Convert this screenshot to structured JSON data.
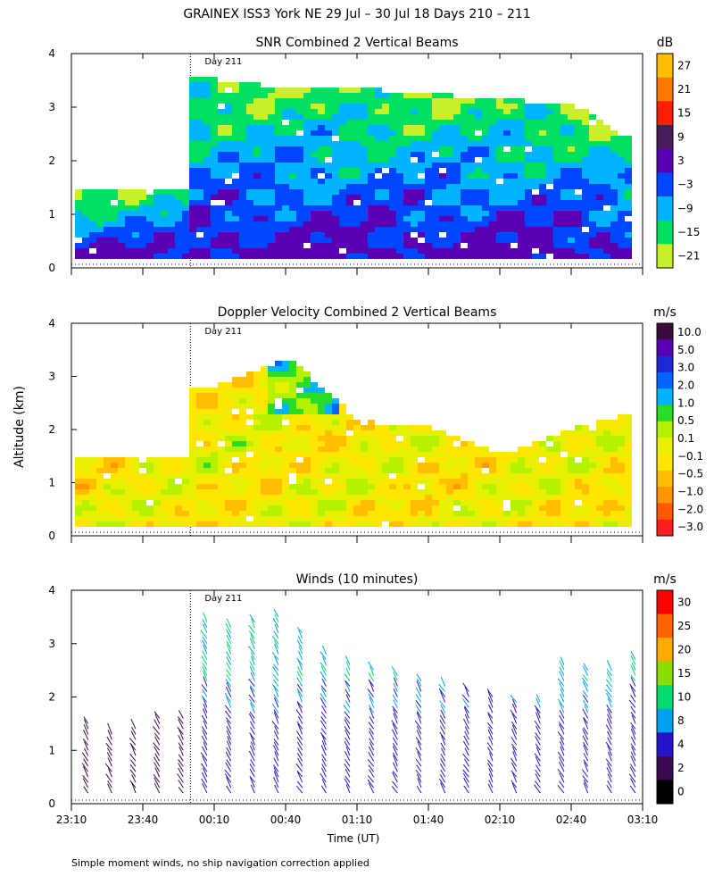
{
  "figure": {
    "title": "GRAINEX ISS3 York NE  29 Jul – 30 Jul 18 Days 210 – 211",
    "xlabel": "Time (UT)",
    "ylabel": "Altitude (km)",
    "footnote": "Simple moment winds, no ship navigation correction applied",
    "day_marker_label": "Day 211"
  },
  "colors": {
    "snr": [
      "#c8f028",
      "#00e060",
      "#00b4ff",
      "#0046ff",
      "#5a00b4",
      "#461e5a",
      "#ff1e00",
      "#ff7800",
      "#ffbe00"
    ],
    "vel": [
      "#ff1e1e",
      "#ff5a00",
      "#ff9600",
      "#ffbe00",
      "#ffe600",
      "#e6f000",
      "#b4f000",
      "#28dc28",
      "#00b4ff",
      "#0064ff",
      "#1e28d2",
      "#5a00b4",
      "#3c0a3c"
    ],
    "wind": [
      "#000000",
      "#3c0a50",
      "#2814c8",
      "#00a0f0",
      "#00dc6e",
      "#8cdc00",
      "#ffaa00",
      "#ff6400",
      "#ff0000"
    ]
  },
  "chart_data": [
    {
      "type": "heatmap",
      "title": "SNR Combined 2 Vertical Beams",
      "units": "dB",
      "colorbar_ticks": [
        "27",
        "21",
        "15",
        "9",
        "3",
        "−3",
        "−9",
        "−15",
        "−21"
      ],
      "x_ticks": [
        "23:10",
        "23:40",
        "00:10",
        "00:40",
        "01:10",
        "01:40",
        "02:10",
        "02:40",
        "03:10"
      ],
      "y_ticks": [
        "0",
        "1",
        "2",
        "3",
        "4"
      ],
      "ylim": [
        0,
        4
      ],
      "data_top_km": [
        {
          "t": "23:10",
          "top": 1.4
        },
        {
          "t": "23:58",
          "top": 1.45
        },
        {
          "t": "00:05",
          "top": 3.5
        },
        {
          "t": "00:40",
          "top": 3.3
        },
        {
          "t": "01:10",
          "top": 3.3
        },
        {
          "t": "01:40",
          "top": 3.2
        },
        {
          "t": "02:10",
          "top": 3.1
        },
        {
          "t": "02:40",
          "top": 3.0
        },
        {
          "t": "03:05",
          "top": 2.3
        }
      ]
    },
    {
      "type": "heatmap",
      "title": "Doppler Velocity Combined 2 Vertical Beams",
      "units": "m/s",
      "colorbar_ticks": [
        "10.0",
        "5.0",
        "3.0",
        "2.0",
        "1.0",
        "0.5",
        "0.1",
        "−0.1",
        "−0.5",
        "−1.0",
        "−2.0",
        "−3.0"
      ],
      "x_ticks": [
        "23:10",
        "23:40",
        "00:10",
        "00:40",
        "01:10",
        "01:40",
        "02:10",
        "02:40",
        "03:10"
      ],
      "y_ticks": [
        "0",
        "1",
        "2",
        "3",
        "4"
      ],
      "ylim": [
        0,
        4
      ],
      "data_top_km": [
        {
          "t": "23:10",
          "top": 1.4
        },
        {
          "t": "23:58",
          "top": 1.45
        },
        {
          "t": "00:05",
          "top": 2.7
        },
        {
          "t": "00:40",
          "top": 3.3
        },
        {
          "t": "01:10",
          "top": 2.1
        },
        {
          "t": "01:40",
          "top": 2.0
        },
        {
          "t": "02:10",
          "top": 1.5
        },
        {
          "t": "02:40",
          "top": 2.0
        },
        {
          "t": "03:05",
          "top": 2.25
        }
      ]
    },
    {
      "type": "scatter",
      "title": "Winds (10 minutes)",
      "units": "m/s",
      "colorbar_ticks": [
        "30",
        "25",
        "20",
        "15",
        "10",
        "8",
        "4",
        "2",
        "0"
      ],
      "x_ticks": [
        "23:10",
        "23:40",
        "00:10",
        "00:40",
        "01:10",
        "01:40",
        "02:10",
        "02:40",
        "03:10"
      ],
      "y_ticks": [
        "0",
        "1",
        "2",
        "3",
        "4"
      ],
      "ylim": [
        0,
        4
      ],
      "profile_times": [
        "23:17",
        "23:27",
        "23:37",
        "23:47",
        "23:57",
        "00:07",
        "00:17",
        "00:27",
        "00:37",
        "00:47",
        "00:57",
        "01:07",
        "01:17",
        "01:27",
        "01:37",
        "01:47",
        "01:57",
        "02:07",
        "02:17",
        "02:27",
        "02:37",
        "02:47",
        "02:57",
        "03:07"
      ],
      "profile_top_km": [
        1.6,
        1.4,
        1.5,
        1.7,
        1.7,
        3.5,
        3.4,
        3.5,
        3.6,
        3.3,
        2.9,
        2.7,
        2.6,
        2.5,
        2.4,
        2.3,
        2.2,
        2.1,
        2.0,
        2.0,
        2.7,
        2.6,
        2.6,
        2.8
      ]
    }
  ]
}
